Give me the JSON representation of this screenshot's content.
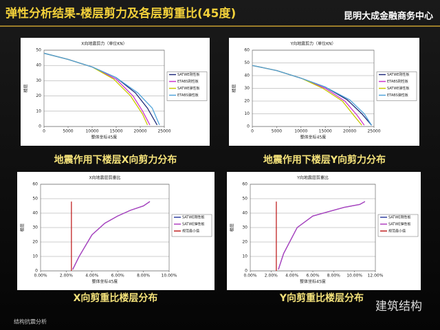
{
  "header": {
    "title": "弹性分析结果-楼层剪力及各层剪重比(45度)",
    "project": "昆明大成金融商务中心"
  },
  "captions": [
    "地震作用下楼层X向剪力分布",
    "地震作用下楼层Y向剪力分布",
    "X向剪重比楼层分布",
    "Y向剪重比楼层分布"
  ],
  "footer": {
    "left": "结构抗震分析",
    "watermark": "建筑结构"
  },
  "chart_data": [
    {
      "type": "line",
      "title": "X向地震剪力（单位KN）",
      "x_label": "整体坐标45度",
      "y_label": "楼层",
      "xlim": [
        0,
        25000
      ],
      "xticks": [
        0,
        5000,
        10000,
        15000,
        20000,
        25000
      ],
      "ylim": [
        0,
        50
      ],
      "yticks": [
        0,
        10,
        20,
        30,
        40,
        50
      ],
      "grid": true,
      "series": [
        {
          "name": "SATWE刚性板",
          "color": "#1f2a7a",
          "x": [
            0,
            5000,
            10000,
            15000,
            19000,
            21500,
            23500
          ],
          "values": [
            48,
            44,
            39,
            32,
            22,
            12,
            1
          ]
        },
        {
          "name": "ETABS刚性板",
          "color": "#cc33cc",
          "x": [
            0,
            5000,
            10000,
            15000,
            18500,
            20500,
            22000
          ],
          "values": [
            48,
            44,
            39,
            31,
            20,
            10,
            1
          ]
        },
        {
          "name": "SATWE弹性板",
          "color": "#c8c800",
          "x": [
            0,
            5000,
            10000,
            14500,
            18000,
            20500,
            21500
          ],
          "values": [
            48,
            44,
            39,
            31,
            20,
            8,
            1
          ]
        },
        {
          "name": "ETABS弹性板",
          "color": "#4fa3d9",
          "x": [
            0,
            5000,
            10000,
            15000,
            19500,
            22500,
            24000
          ],
          "values": [
            48,
            44,
            39,
            32,
            22,
            12,
            1
          ]
        }
      ]
    },
    {
      "type": "line",
      "title": "Y向地震剪力（单位KN）",
      "x_label": "整体坐标45度",
      "y_label": "楼层",
      "xlim": [
        0,
        25000
      ],
      "xticks": [
        0,
        5000,
        10000,
        15000,
        20000,
        25000
      ],
      "ylim": [
        0,
        60
      ],
      "yticks": [
        0,
        10,
        20,
        30,
        40,
        50,
        60
      ],
      "grid": true,
      "series": [
        {
          "name": "SATWE刚性板",
          "color": "#1f2a7a",
          "x": [
            0,
            5000,
            10000,
            15000,
            19500,
            22500,
            24500
          ],
          "values": [
            48,
            44,
            38,
            31,
            21,
            10,
            1
          ]
        },
        {
          "name": "ETABS刚性板",
          "color": "#cc33cc",
          "x": [
            0,
            5000,
            10000,
            15000,
            19000,
            21500,
            23000
          ],
          "values": [
            48,
            44,
            38,
            30,
            20,
            9,
            1
          ]
        },
        {
          "name": "SATWE弹性板",
          "color": "#c8c800",
          "x": [
            0,
            5000,
            10000,
            14500,
            18500,
            21000,
            22500
          ],
          "values": [
            48,
            44,
            38,
            30,
            20,
            8,
            1
          ]
        },
        {
          "name": "ETABS弹性板",
          "color": "#4fa3d9",
          "x": [
            0,
            5000,
            10000,
            15000,
            20000,
            23000,
            24500
          ],
          "values": [
            48,
            44,
            38,
            31,
            21,
            10,
            1
          ]
        }
      ]
    },
    {
      "type": "line",
      "title": "X向地震层剪重比",
      "x_label": "整体坐标45度",
      "y_label": "楼层",
      "xlim": [
        0,
        10
      ],
      "xticks": [
        {
          "value": 0,
          "label": "0.00%"
        },
        {
          "value": 2,
          "label": "2.00%"
        },
        {
          "value": 4,
          "label": "4.00%"
        },
        {
          "value": 6,
          "label": "6.00%"
        },
        {
          "value": 8,
          "label": "8.00%"
        },
        {
          "value": 10,
          "label": "10.00%"
        }
      ],
      "ylim": [
        0,
        60
      ],
      "yticks": [
        0,
        10,
        20,
        30,
        40,
        50,
        60
      ],
      "grid": true,
      "series": [
        {
          "name": "SATWE刚性板",
          "color": "#3040a0",
          "x": [
            2.5,
            3,
            4,
            5,
            6,
            7,
            8,
            8.5
          ],
          "values": [
            1,
            10,
            25,
            33,
            38,
            42,
            45,
            48
          ]
        },
        {
          "name": "SATWE弹性板",
          "color": "#b040c0",
          "x": [
            2.5,
            3,
            4,
            5,
            6,
            7,
            8,
            8.5
          ],
          "values": [
            1,
            10,
            25,
            33,
            38,
            42,
            45,
            48
          ]
        },
        {
          "name": "规范最小值",
          "color": "#c02020",
          "x": [
            2.4,
            2.4
          ],
          "values": [
            0,
            48
          ]
        }
      ]
    },
    {
      "type": "line",
      "title": "Y向地震层剪重比",
      "x_label": "整体坐标45度",
      "y_label": "楼层",
      "xlim": [
        0,
        12
      ],
      "xticks": [
        {
          "value": 0,
          "label": "0.00%"
        },
        {
          "value": 2,
          "label": "2.00%"
        },
        {
          "value": 4,
          "label": "4.00%"
        },
        {
          "value": 6,
          "label": "6.00%"
        },
        {
          "value": 8,
          "label": "8.00%"
        },
        {
          "value": 10,
          "label": "10.00%"
        },
        {
          "value": 12,
          "label": "12.00%"
        }
      ],
      "ylim": [
        0,
        60
      ],
      "yticks": [
        0,
        10,
        20,
        30,
        40,
        50,
        60
      ],
      "grid": true,
      "series": [
        {
          "name": "SATWE刚性板",
          "color": "#3040a0",
          "x": [
            2.7,
            3.2,
            4.5,
            6,
            7.5,
            9,
            10.5,
            11
          ],
          "values": [
            1,
            12,
            30,
            38,
            41,
            44,
            46,
            48
          ]
        },
        {
          "name": "SATWE弹性板",
          "color": "#b040c0",
          "x": [
            2.7,
            3.2,
            4.5,
            6,
            7.5,
            9,
            10.5,
            11
          ],
          "values": [
            1,
            12,
            30,
            38,
            41,
            44,
            46,
            48
          ]
        },
        {
          "name": "规范最小值",
          "color": "#c02020",
          "x": [
            2.5,
            2.5
          ],
          "values": [
            0,
            48
          ]
        }
      ]
    }
  ]
}
